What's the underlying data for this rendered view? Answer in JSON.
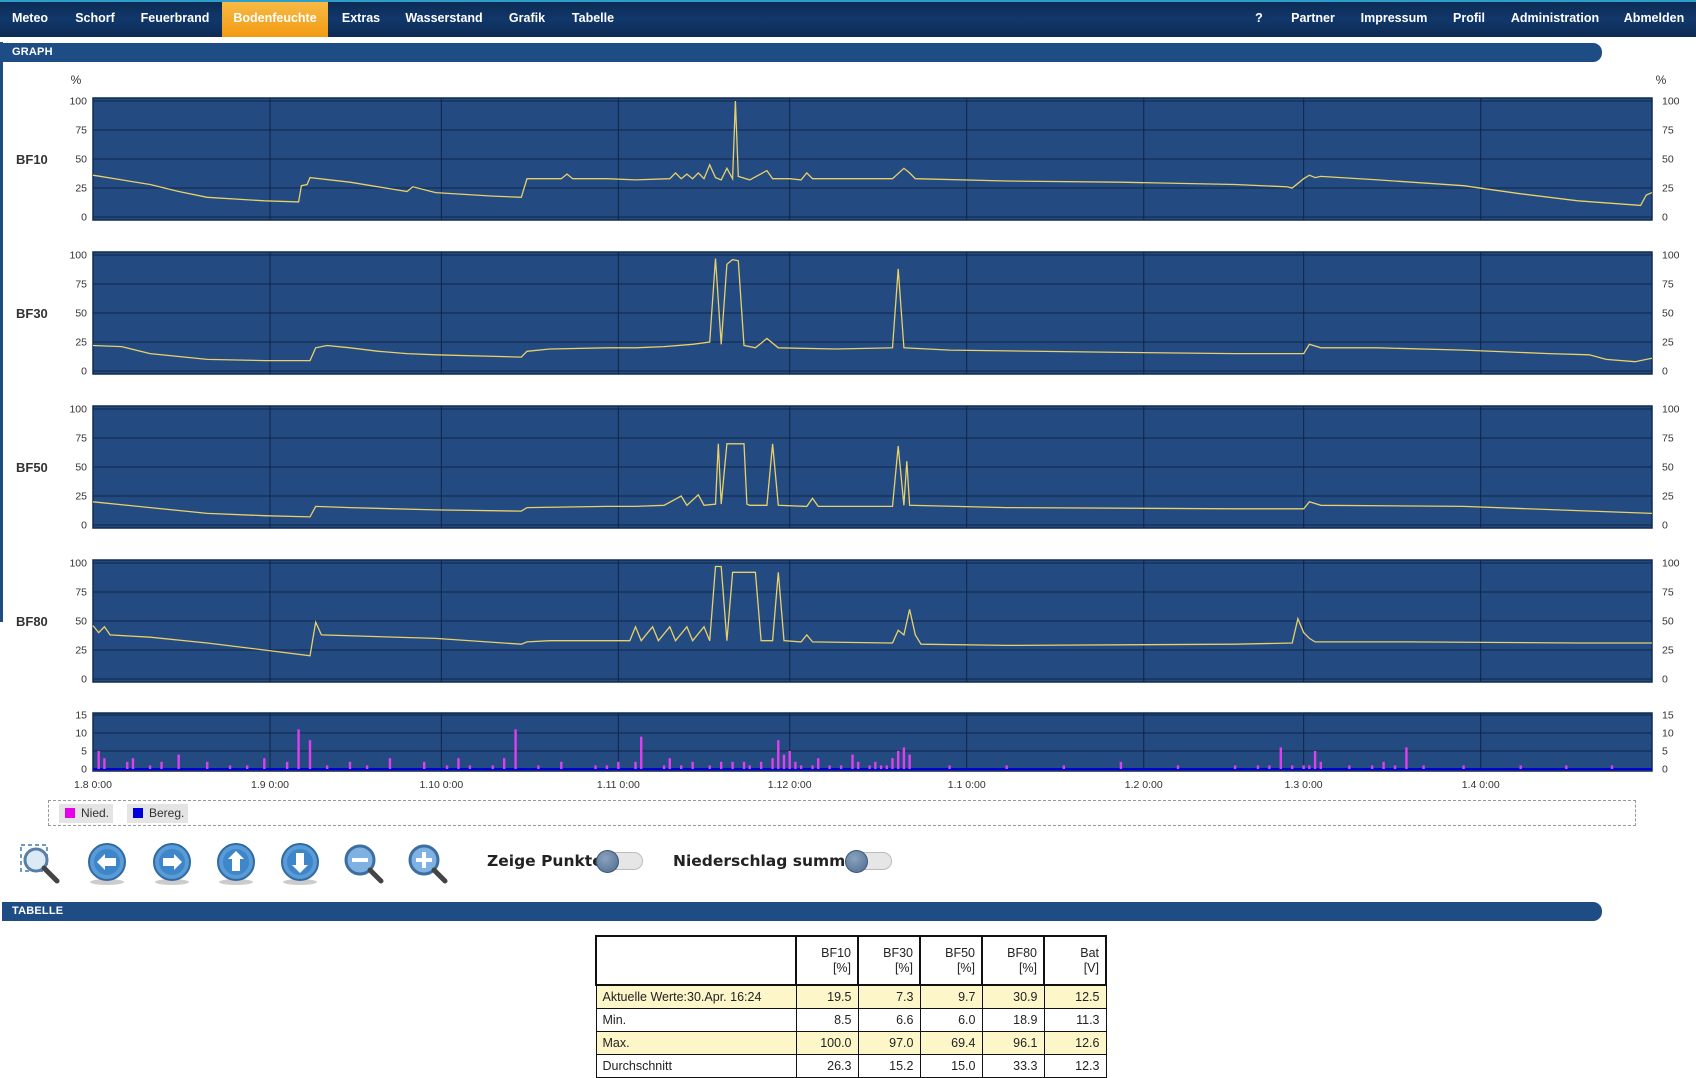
{
  "nav": {
    "left": [
      "Meteo",
      "Schorf",
      "Feuerbrand",
      "Bodenfeuchte",
      "Extras",
      "Wasserstand",
      "Grafik",
      "Tabelle"
    ],
    "active": "Bodenfeuchte",
    "right": [
      "?",
      "Partner",
      "Impressum",
      "Profil",
      "Administration",
      "Abmelden"
    ]
  },
  "sections": {
    "graph": "GRAPH",
    "table": "TABELLE"
  },
  "chart_data": {
    "type": "line",
    "unit_label": "%",
    "x_ticks": [
      "1.8 0:00",
      "1.9 0:00",
      "1.10 0:00",
      "1.11 0:00",
      "1.12 0:00",
      "1.1 0:00",
      "1.2 0:00",
      "1.3 0:00",
      "1.4 0:00"
    ],
    "x_tick_days": [
      0,
      31,
      61,
      92,
      122,
      153,
      184,
      212,
      243
    ],
    "x_range_days": [
      0,
      273
    ],
    "panels": [
      {
        "label": "BF10",
        "ylim": [
          0,
          100
        ],
        "yticks": [
          0,
          25,
          50,
          75,
          100
        ],
        "color": "#e8d06a",
        "points": [
          [
            0,
            36
          ],
          [
            10,
            28
          ],
          [
            15,
            22
          ],
          [
            20,
            17
          ],
          [
            30,
            14
          ],
          [
            36,
            13
          ],
          [
            36.5,
            27
          ],
          [
            37.5,
            28
          ],
          [
            38,
            34
          ],
          [
            45,
            30
          ],
          [
            55,
            22
          ],
          [
            56,
            26
          ],
          [
            60,
            21
          ],
          [
            70,
            18
          ],
          [
            75,
            17
          ],
          [
            76,
            33
          ],
          [
            80,
            33
          ],
          [
            82,
            33
          ],
          [
            83,
            37
          ],
          [
            84,
            33
          ],
          [
            90,
            33
          ],
          [
            95,
            32
          ],
          [
            101,
            33
          ],
          [
            102,
            38
          ],
          [
            103,
            33
          ],
          [
            104,
            37
          ],
          [
            105,
            33
          ],
          [
            106,
            38
          ],
          [
            107,
            33
          ],
          [
            108,
            45
          ],
          [
            109,
            34
          ],
          [
            110,
            32
          ],
          [
            111,
            42
          ],
          [
            112,
            33
          ],
          [
            112.5,
            100
          ],
          [
            113,
            35
          ],
          [
            115,
            32
          ],
          [
            118,
            40
          ],
          [
            119,
            33
          ],
          [
            122,
            33
          ],
          [
            124,
            32
          ],
          [
            125,
            38
          ],
          [
            126,
            33
          ],
          [
            140,
            33
          ],
          [
            142,
            42
          ],
          [
            143,
            38
          ],
          [
            144,
            33
          ],
          [
            160,
            31
          ],
          [
            180,
            30
          ],
          [
            200,
            28
          ],
          [
            209,
            26
          ],
          [
            210,
            25
          ],
          [
            212,
            33
          ],
          [
            213,
            36
          ],
          [
            214,
            34
          ],
          [
            215,
            35
          ],
          [
            225,
            32
          ],
          [
            240,
            27
          ],
          [
            250,
            20
          ],
          [
            260,
            14
          ],
          [
            271,
            10
          ],
          [
            272,
            19
          ],
          [
            273,
            21
          ]
        ]
      },
      {
        "label": "BF30",
        "ylim": [
          0,
          100
        ],
        "yticks": [
          0,
          25,
          50,
          75,
          100
        ],
        "color": "#e8d06a",
        "points": [
          [
            0,
            22
          ],
          [
            5,
            21
          ],
          [
            10,
            15
          ],
          [
            20,
            10
          ],
          [
            30,
            9
          ],
          [
            38,
            9
          ],
          [
            39,
            20
          ],
          [
            41,
            22
          ],
          [
            45,
            20
          ],
          [
            50,
            17
          ],
          [
            55,
            15
          ],
          [
            60,
            14
          ],
          [
            75,
            12
          ],
          [
            76,
            17
          ],
          [
            80,
            19
          ],
          [
            90,
            20
          ],
          [
            95,
            20
          ],
          [
            100,
            21
          ],
          [
            105,
            23
          ],
          [
            108,
            25
          ],
          [
            109,
            97
          ],
          [
            110,
            23
          ],
          [
            111,
            92
          ],
          [
            112,
            96
          ],
          [
            113,
            95
          ],
          [
            114,
            22
          ],
          [
            115,
            21
          ],
          [
            116,
            20
          ],
          [
            118,
            28
          ],
          [
            120,
            20
          ],
          [
            130,
            19
          ],
          [
            140,
            20
          ],
          [
            141,
            88
          ],
          [
            142,
            20
          ],
          [
            150,
            18
          ],
          [
            180,
            16
          ],
          [
            200,
            15
          ],
          [
            212,
            15
          ],
          [
            213,
            23
          ],
          [
            215,
            20
          ],
          [
            225,
            20
          ],
          [
            240,
            18
          ],
          [
            255,
            15
          ],
          [
            262,
            14
          ],
          [
            265,
            10
          ],
          [
            270,
            8
          ],
          [
            273,
            11
          ]
        ]
      },
      {
        "label": "BF50",
        "ylim": [
          0,
          100
        ],
        "yticks": [
          0,
          25,
          50,
          75,
          100
        ],
        "color": "#e8d06a",
        "points": [
          [
            0,
            20
          ],
          [
            10,
            15
          ],
          [
            20,
            10
          ],
          [
            30,
            8
          ],
          [
            38,
            7
          ],
          [
            39,
            16
          ],
          [
            45,
            15
          ],
          [
            60,
            13
          ],
          [
            75,
            12
          ],
          [
            76,
            15
          ],
          [
            90,
            16
          ],
          [
            95,
            16
          ],
          [
            100,
            17
          ],
          [
            103,
            25
          ],
          [
            104,
            17
          ],
          [
            106,
            26
          ],
          [
            107,
            17
          ],
          [
            109,
            18
          ],
          [
            109.5,
            70
          ],
          [
            110,
            18
          ],
          [
            111,
            70
          ],
          [
            114,
            70
          ],
          [
            114.5,
            18
          ],
          [
            115,
            17
          ],
          [
            118,
            17
          ],
          [
            119,
            70
          ],
          [
            120,
            17
          ],
          [
            125,
            16
          ],
          [
            126,
            23
          ],
          [
            127,
            16
          ],
          [
            140,
            16
          ],
          [
            141,
            68
          ],
          [
            142,
            17
          ],
          [
            142.5,
            55
          ],
          [
            143,
            17
          ],
          [
            160,
            15
          ],
          [
            200,
            14
          ],
          [
            212,
            14
          ],
          [
            213,
            20
          ],
          [
            215,
            17
          ],
          [
            240,
            16
          ],
          [
            273,
            10
          ]
        ]
      },
      {
        "label": "BF80",
        "ylim": [
          0,
          100
        ],
        "yticks": [
          0,
          25,
          50,
          75,
          100
        ],
        "color": "#e8d06a",
        "points": [
          [
            0,
            46
          ],
          [
            1,
            40
          ],
          [
            2,
            45
          ],
          [
            3,
            38
          ],
          [
            10,
            36
          ],
          [
            20,
            31
          ],
          [
            30,
            25
          ],
          [
            38,
            20
          ],
          [
            39,
            49
          ],
          [
            40,
            38
          ],
          [
            60,
            35
          ],
          [
            75,
            30
          ],
          [
            76,
            32
          ],
          [
            80,
            33
          ],
          [
            90,
            33
          ],
          [
            94,
            33
          ],
          [
            95,
            45
          ],
          [
            96,
            33
          ],
          [
            98,
            45
          ],
          [
            99,
            33
          ],
          [
            101,
            45
          ],
          [
            102,
            33
          ],
          [
            104,
            45
          ],
          [
            105,
            33
          ],
          [
            107,
            45
          ],
          [
            108,
            33
          ],
          [
            109,
            97
          ],
          [
            110,
            97
          ],
          [
            111,
            33
          ],
          [
            112,
            92
          ],
          [
            116,
            92
          ],
          [
            117,
            33
          ],
          [
            119,
            33
          ],
          [
            120,
            92
          ],
          [
            121,
            33
          ],
          [
            124,
            32
          ],
          [
            125,
            38
          ],
          [
            126,
            32
          ],
          [
            140,
            31
          ],
          [
            141,
            42
          ],
          [
            142,
            38
          ],
          [
            143,
            60
          ],
          [
            144,
            38
          ],
          [
            145,
            30
          ],
          [
            160,
            29
          ],
          [
            200,
            30
          ],
          [
            210,
            31
          ],
          [
            211,
            52
          ],
          [
            212,
            40
          ],
          [
            213,
            35
          ],
          [
            214,
            32
          ],
          [
            230,
            32
          ],
          [
            260,
            31
          ],
          [
            273,
            31
          ]
        ]
      },
      {
        "label": "",
        "ylim": [
          0,
          15
        ],
        "yticks": [
          0,
          5,
          10,
          15
        ],
        "color": "#e040ef",
        "type": "bar",
        "points": [
          [
            1,
            5
          ],
          [
            2,
            3
          ],
          [
            6,
            2
          ],
          [
            7,
            3
          ],
          [
            10,
            1
          ],
          [
            12,
            2
          ],
          [
            15,
            4
          ],
          [
            20,
            2
          ],
          [
            24,
            1
          ],
          [
            27,
            1
          ],
          [
            30,
            3
          ],
          [
            34,
            2
          ],
          [
            36,
            11
          ],
          [
            38,
            8
          ],
          [
            41,
            1
          ],
          [
            45,
            2
          ],
          [
            48,
            1
          ],
          [
            52,
            3
          ],
          [
            58,
            2
          ],
          [
            62,
            1
          ],
          [
            64,
            3
          ],
          [
            66,
            1
          ],
          [
            70,
            1
          ],
          [
            72,
            3
          ],
          [
            74,
            11
          ],
          [
            78,
            1
          ],
          [
            82,
            2
          ],
          [
            88,
            1
          ],
          [
            90,
            1
          ],
          [
            92,
            2
          ],
          [
            95,
            2
          ],
          [
            96,
            9
          ],
          [
            100,
            1
          ],
          [
            101,
            3
          ],
          [
            103,
            1
          ],
          [
            105,
            2
          ],
          [
            108,
            1
          ],
          [
            110,
            2
          ],
          [
            112,
            2
          ],
          [
            114,
            2
          ],
          [
            115,
            1
          ],
          [
            117,
            2
          ],
          [
            119,
            3
          ],
          [
            120,
            8
          ],
          [
            121,
            4
          ],
          [
            122,
            5
          ],
          [
            123,
            2
          ],
          [
            124,
            1
          ],
          [
            126,
            1
          ],
          [
            127,
            3
          ],
          [
            129,
            1
          ],
          [
            131,
            1
          ],
          [
            133,
            4
          ],
          [
            134,
            2
          ],
          [
            136,
            1
          ],
          [
            137,
            2
          ],
          [
            138,
            1
          ],
          [
            139,
            1
          ],
          [
            140,
            3
          ],
          [
            141,
            5
          ],
          [
            142,
            6
          ],
          [
            143,
            4
          ],
          [
            150,
            1
          ],
          [
            160,
            1
          ],
          [
            170,
            1
          ],
          [
            180,
            2
          ],
          [
            190,
            1
          ],
          [
            200,
            1
          ],
          [
            204,
            1
          ],
          [
            206,
            1
          ],
          [
            208,
            6
          ],
          [
            210,
            1
          ],
          [
            212,
            1
          ],
          [
            213,
            1
          ],
          [
            214,
            5
          ],
          [
            215,
            2
          ],
          [
            220,
            1
          ],
          [
            224,
            1
          ],
          [
            226,
            2
          ],
          [
            228,
            1
          ],
          [
            230,
            6
          ],
          [
            233,
            1
          ],
          [
            240,
            1
          ],
          [
            250,
            1
          ],
          [
            258,
            1
          ],
          [
            266,
            1
          ]
        ]
      }
    ],
    "legend": [
      {
        "name": "Nied.",
        "color": "#e400e8"
      },
      {
        "name": "Bereg.",
        "color": "#0000dd"
      }
    ]
  },
  "toggles": {
    "points_label": "Zeige Punkte",
    "sum_label": "Niederschlag summe"
  },
  "table": {
    "headers": [
      [
        "BF10",
        "[%]"
      ],
      [
        "BF30",
        "[%]"
      ],
      [
        "BF50",
        "[%]"
      ],
      [
        "BF80",
        "[%]"
      ],
      [
        "Bat",
        "[V]"
      ]
    ],
    "rows": [
      {
        "label": "Aktuelle Werte:30.Apr. 16:24",
        "values": [
          "19.5",
          "7.3",
          "9.7",
          "30.9",
          "12.5"
        ]
      },
      {
        "label": "Min.",
        "values": [
          "8.5",
          "6.6",
          "6.0",
          "18.9",
          "11.3"
        ]
      },
      {
        "label": "Max.",
        "values": [
          "100.0",
          "97.0",
          "69.4",
          "96.1",
          "12.6"
        ]
      },
      {
        "label": "Durchschnitt",
        "values": [
          "26.3",
          "15.2",
          "15.0",
          "33.3",
          "12.3"
        ]
      }
    ]
  }
}
